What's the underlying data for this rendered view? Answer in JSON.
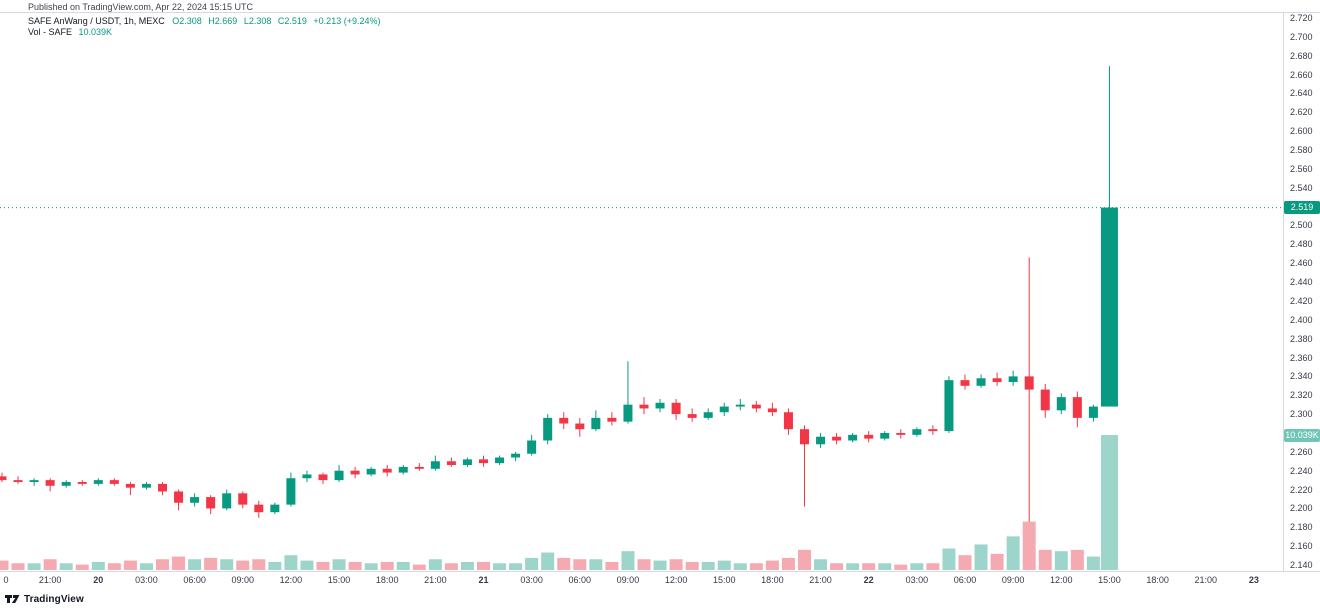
{
  "published_line": "Published on TradingView.com, Apr 22, 2024 15:15 UTC",
  "legend": {
    "symbol": "SAFE AnWang / USDT, 1h, MEXC",
    "o": "O2.308",
    "h": "H2.669",
    "l": "L2.308",
    "c": "C2.519",
    "change": "+0.213 (+9.24%)",
    "vol_label": "Vol - SAFE",
    "vol_value": "10.039K"
  },
  "badges": {
    "price": "2.519",
    "volume": "10.039K"
  },
  "footer": {
    "brand": "TradingView"
  },
  "chart_data": {
    "type": "candlestick",
    "symbol": "SAFE AnWang / USDT",
    "interval": "1h",
    "exchange": "MEXC",
    "last_price": 2.519,
    "last_candle": {
      "open": 2.308,
      "high": 2.669,
      "low": 2.308,
      "close": 2.519,
      "change": "+0.213 (+9.24%)"
    },
    "volume_last": "10.039K",
    "volume_max": 10.039,
    "price_axis": {
      "min": 2.14,
      "max": 2.72,
      "step": 0.02
    },
    "grid": false,
    "colors": {
      "up": "#089981",
      "down": "#f23645",
      "vol_up": "#9ed5ca",
      "vol_down": "#f5a9b0",
      "vol_badge": "#6fc6b6",
      "axis_text": "#363a45",
      "border": "#d6d9e0"
    },
    "time_ticks": [
      {
        "i": 0,
        "label": "0",
        "d": false
      },
      {
        "i": 3,
        "label": "21:00",
        "d": false
      },
      {
        "i": 6,
        "label": "20",
        "d": true
      },
      {
        "i": 9,
        "label": "03:00",
        "d": false
      },
      {
        "i": 12,
        "label": "06:00",
        "d": false
      },
      {
        "i": 15,
        "label": "09:00",
        "d": false
      },
      {
        "i": 18,
        "label": "12:00",
        "d": false
      },
      {
        "i": 21,
        "label": "15:00",
        "d": false
      },
      {
        "i": 24,
        "label": "18:00",
        "d": false
      },
      {
        "i": 27,
        "label": "21:00",
        "d": false
      },
      {
        "i": 30,
        "label": "21",
        "d": true
      },
      {
        "i": 33,
        "label": "03:00",
        "d": false
      },
      {
        "i": 36,
        "label": "06:00",
        "d": false
      },
      {
        "i": 39,
        "label": "09:00",
        "d": false
      },
      {
        "i": 42,
        "label": "12:00",
        "d": false
      },
      {
        "i": 45,
        "label": "15:00",
        "d": false
      },
      {
        "i": 48,
        "label": "18:00",
        "d": false
      },
      {
        "i": 51,
        "label": "21:00",
        "d": false
      },
      {
        "i": 54,
        "label": "22",
        "d": true
      },
      {
        "i": 57,
        "label": "03:00",
        "d": false
      },
      {
        "i": 60,
        "label": "06:00",
        "d": false
      },
      {
        "i": 63,
        "label": "09:00",
        "d": false
      },
      {
        "i": 66,
        "label": "12:00",
        "d": false
      },
      {
        "i": 69,
        "label": "15:00",
        "d": false
      },
      {
        "i": 72,
        "label": "18:00",
        "d": false
      },
      {
        "i": 75,
        "label": "21:00",
        "d": false
      },
      {
        "i": 78,
        "label": "23",
        "d": true
      }
    ],
    "candles_format": [
      "open",
      "high",
      "low",
      "close",
      "volume_k"
    ],
    "candles": [
      [
        2.234,
        2.238,
        2.228,
        2.23,
        0.7
      ],
      [
        2.23,
        2.234,
        2.226,
        2.228,
        0.5
      ],
      [
        2.228,
        2.232,
        2.224,
        2.23,
        0.5
      ],
      [
        2.23,
        2.232,
        2.218,
        2.224,
        0.8
      ],
      [
        2.224,
        2.23,
        2.222,
        2.228,
        0.5
      ],
      [
        2.228,
        2.23,
        2.224,
        2.226,
        0.4
      ],
      [
        2.226,
        2.232,
        2.224,
        2.23,
        0.6
      ],
      [
        2.23,
        2.232,
        2.224,
        2.226,
        0.5
      ],
      [
        2.226,
        2.228,
        2.214,
        2.222,
        0.7
      ],
      [
        2.222,
        2.228,
        2.22,
        2.226,
        0.5
      ],
      [
        2.226,
        2.228,
        2.214,
        2.218,
        0.8
      ],
      [
        2.218,
        2.22,
        2.198,
        2.206,
        1.0
      ],
      [
        2.206,
        2.216,
        2.202,
        2.212,
        0.8
      ],
      [
        2.212,
        2.214,
        2.194,
        2.2,
        0.9
      ],
      [
        2.2,
        2.22,
        2.198,
        2.216,
        0.8
      ],
      [
        2.216,
        2.218,
        2.2,
        2.204,
        0.7
      ],
      [
        2.204,
        2.208,
        2.19,
        2.196,
        0.8
      ],
      [
        2.196,
        2.206,
        2.194,
        2.204,
        0.6
      ],
      [
        2.204,
        2.238,
        2.202,
        2.232,
        1.1
      ],
      [
        2.232,
        2.24,
        2.228,
        2.236,
        0.7
      ],
      [
        2.236,
        2.238,
        2.226,
        2.23,
        0.6
      ],
      [
        2.23,
        2.246,
        2.228,
        2.24,
        0.8
      ],
      [
        2.24,
        2.244,
        2.232,
        2.236,
        0.6
      ],
      [
        2.236,
        2.244,
        2.234,
        2.242,
        0.5
      ],
      [
        2.242,
        2.246,
        2.234,
        2.238,
        0.6
      ],
      [
        2.238,
        2.246,
        2.236,
        2.244,
        0.6
      ],
      [
        2.244,
        2.248,
        2.24,
        2.242,
        0.4
      ],
      [
        2.242,
        2.256,
        2.24,
        2.25,
        0.8
      ],
      [
        2.25,
        2.254,
        2.244,
        2.246,
        0.5
      ],
      [
        2.246,
        2.254,
        2.244,
        2.252,
        0.6
      ],
      [
        2.252,
        2.256,
        2.244,
        2.248,
        0.6
      ],
      [
        2.248,
        2.256,
        2.246,
        2.254,
        0.5
      ],
      [
        2.254,
        2.26,
        2.25,
        2.258,
        0.5
      ],
      [
        2.258,
        2.278,
        2.256,
        2.272,
        0.9
      ],
      [
        2.272,
        2.3,
        2.268,
        2.296,
        1.3
      ],
      [
        2.296,
        2.302,
        2.284,
        2.29,
        0.9
      ],
      [
        2.29,
        2.296,
        2.276,
        2.284,
        0.8
      ],
      [
        2.284,
        2.304,
        2.282,
        2.296,
        0.8
      ],
      [
        2.296,
        2.302,
        2.288,
        2.292,
        0.6
      ],
      [
        2.292,
        2.356,
        2.29,
        2.31,
        1.4
      ],
      [
        2.31,
        2.318,
        2.3,
        2.306,
        0.8
      ],
      [
        2.306,
        2.316,
        2.302,
        2.312,
        0.7
      ],
      [
        2.312,
        2.316,
        2.294,
        2.3,
        0.8
      ],
      [
        2.3,
        2.306,
        2.292,
        2.296,
        0.6
      ],
      [
        2.296,
        2.306,
        2.294,
        2.302,
        0.6
      ],
      [
        2.302,
        2.312,
        2.298,
        2.308,
        0.7
      ],
      [
        2.308,
        2.316,
        2.304,
        2.31,
        0.5
      ],
      [
        2.31,
        2.314,
        2.302,
        2.306,
        0.5
      ],
      [
        2.306,
        2.312,
        2.298,
        2.302,
        0.7
      ],
      [
        2.302,
        2.306,
        2.278,
        2.284,
        0.9
      ],
      [
        2.284,
        2.288,
        2.202,
        2.268,
        1.5
      ],
      [
        2.268,
        2.28,
        2.264,
        2.276,
        0.8
      ],
      [
        2.276,
        2.28,
        2.268,
        2.272,
        0.5
      ],
      [
        2.272,
        2.28,
        2.27,
        2.278,
        0.5
      ],
      [
        2.278,
        2.282,
        2.27,
        2.274,
        0.5
      ],
      [
        2.274,
        2.282,
        2.272,
        2.28,
        0.5
      ],
      [
        2.28,
        2.284,
        2.274,
        2.278,
        0.4
      ],
      [
        2.278,
        2.286,
        2.276,
        2.284,
        0.5
      ],
      [
        2.284,
        2.288,
        2.278,
        2.282,
        0.5
      ],
      [
        2.282,
        2.34,
        2.28,
        2.336,
        1.6
      ],
      [
        2.336,
        2.342,
        2.326,
        2.33,
        1.1
      ],
      [
        2.33,
        2.342,
        2.328,
        2.338,
        1.9
      ],
      [
        2.338,
        2.344,
        2.33,
        2.334,
        1.2
      ],
      [
        2.334,
        2.346,
        2.33,
        2.34,
        2.5
      ],
      [
        2.34,
        2.466,
        2.186,
        2.326,
        3.6
      ],
      [
        2.326,
        2.332,
        2.296,
        2.304,
        1.5
      ],
      [
        2.304,
        2.322,
        2.3,
        2.318,
        1.4
      ],
      [
        2.318,
        2.324,
        2.286,
        2.296,
        1.5
      ],
      [
        2.296,
        2.31,
        2.292,
        2.308,
        1.0
      ],
      [
        2.308,
        2.669,
        2.308,
        2.519,
        10.039
      ]
    ]
  }
}
